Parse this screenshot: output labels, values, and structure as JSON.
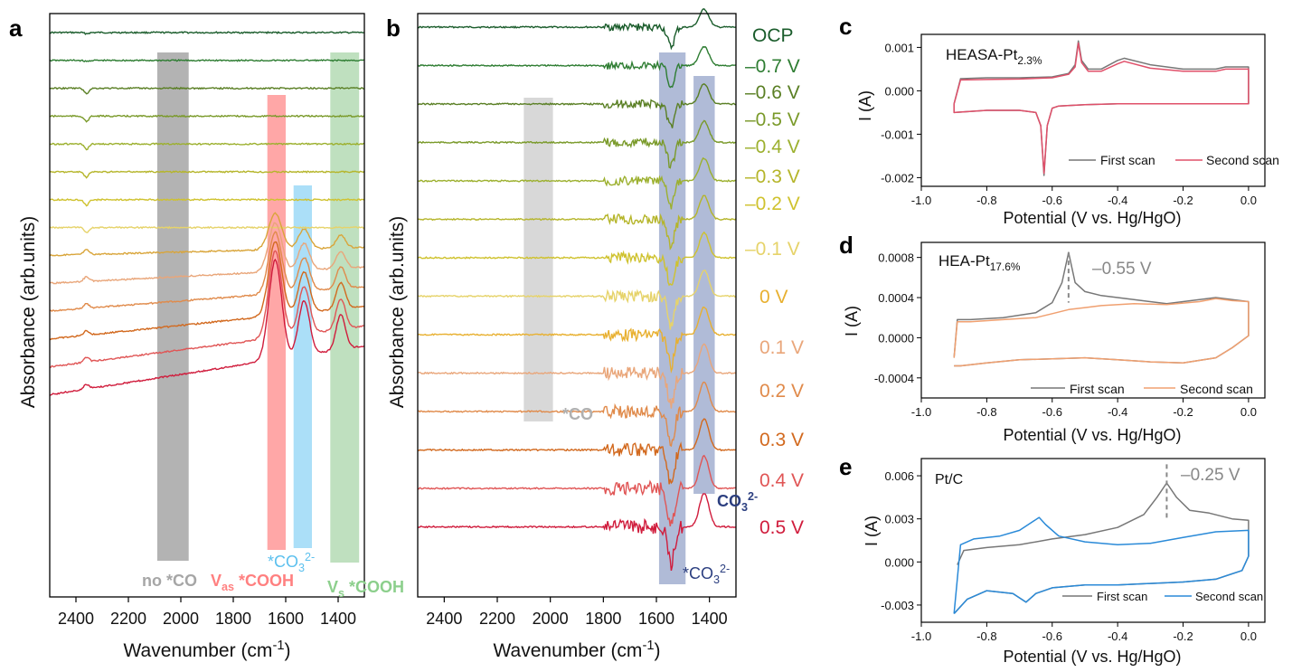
{
  "panels": {
    "a": {
      "letter": "a",
      "ylabel": "Absorbance (arb.units)",
      "xlabel_main": "Wavenumber (cm",
      "xlabel_sup": "-1",
      "xlabel_end": ")",
      "bands": [
        {
          "label": "no *CO",
          "color": "#9a9a9a",
          "label_color": "#a6a6a6"
        },
        {
          "label_main": "V",
          "label_sub": "as",
          "label_rest": " *COOH",
          "color": "#ff8a8a",
          "label_color": "#ff8080"
        },
        {
          "label_main": "*CO",
          "label_sub": "3",
          "label_sup": "2-",
          "color": "#8fd4f5",
          "label_color": "#6cc8f0"
        },
        {
          "label_main": "V",
          "label_sub": "s",
          "label_rest": " *COOH",
          "color": "#a9d6a9",
          "label_color": "#8ccf8c"
        }
      ]
    },
    "b": {
      "letter": "b",
      "ylabel": "Absorbance (arb.units)",
      "xlabel_main": "Wavenumber (cm",
      "xlabel_sup": "-1",
      "xlabel_end": ")",
      "bands": [
        {
          "label": "*CO",
          "color": "#c8c8c8",
          "label_color": "#b0b0b0"
        },
        {
          "label_main": "*CO",
          "label_sub": "3",
          "label_sup": "2-",
          "color": "#8f9ec6",
          "label_color": "#2c3f80"
        },
        {
          "label_main": "CO",
          "label_sub": "3",
          "label_sup": "2-",
          "color": "#8f9ec6",
          "label_color": "#2c3f80"
        }
      ],
      "potential_labels": [
        "OCP",
        "–0.7 V",
        "–0.6 V",
        "–0.5 V",
        "–0.4 V",
        "–0.3 V",
        "–0.2 V",
        "–0.1 V",
        "0 V",
        "0.1 V",
        "0.2 V",
        "0.3 V",
        "0.4 V",
        "0.5 V"
      ]
    },
    "c": {
      "letter": "c",
      "sample_main": "HEASA-Pt",
      "sample_sub": "2.3%",
      "ylabel": "I (A)",
      "xlabel": "Potential (V vs. Hg/HgO)",
      "legend": [
        "First scan",
        "Second scan"
      ]
    },
    "d": {
      "letter": "d",
      "sample_main": "HEA-Pt",
      "sample_sub": "17.6%",
      "annotation": "–0.55 V",
      "ylabel": "I (A)",
      "xlabel": "Potential (V vs. Hg/HgO)",
      "legend": [
        "First scan",
        "Second scan"
      ]
    },
    "e": {
      "letter": "e",
      "sample_main": "Pt/C",
      "annotation": "–0.25 V",
      "ylabel": "I (A)",
      "xlabel": "Potential (V vs. Hg/HgO)",
      "legend": [
        "First scan",
        "Second scan"
      ]
    }
  },
  "chart_data": [
    {
      "panel": "a",
      "type": "line",
      "title": "",
      "xlabel": "Wavenumber (cm-1)",
      "ylabel": "Absorbance (arb.units)",
      "xlim": [
        2500,
        1300
      ],
      "xticks": [
        2400,
        2200,
        2000,
        1800,
        1600,
        1400
      ],
      "xtick_labels": [
        "2400",
        "2200",
        "2000",
        "1800",
        "1600",
        "1400"
      ],
      "band_ranges": [
        [
          2090,
          1970
        ],
        [
          1670,
          1600
        ],
        [
          1570,
          1500
        ],
        [
          1430,
          1320
        ]
      ],
      "series": [
        {
          "name": "OCP",
          "color": "#1a5c2b",
          "offset": 0,
          "profile": "flat"
        },
        {
          "name": "-0.7 V",
          "color": "#2e7d32",
          "offset": 1,
          "profile": "flat"
        },
        {
          "name": "-0.6 V",
          "color": "#5a7f24",
          "offset": 2,
          "profile": "flat"
        },
        {
          "name": "-0.5 V",
          "color": "#7a9a2a",
          "offset": 3,
          "profile": "flat"
        },
        {
          "name": "-0.4 V",
          "color": "#9cb02e",
          "offset": 4,
          "profile": "flat"
        },
        {
          "name": "-0.3 V",
          "color": "#b5b52a",
          "offset": 5,
          "profile": "flat"
        },
        {
          "name": "-0.2 V",
          "color": "#cfc22e",
          "offset": 6,
          "profile": "flat"
        },
        {
          "name": "-0.1 V",
          "color": "#e6d36a",
          "offset": 7,
          "profile": "flat"
        },
        {
          "name": "0 V",
          "color": "#d9a53a",
          "offset": 8,
          "profile": "cooh"
        },
        {
          "name": "0.1 V",
          "color": "#e9a67a",
          "offset": 9,
          "profile": "cooh"
        },
        {
          "name": "0.2 V",
          "color": "#e08a4a",
          "offset": 10,
          "profile": "cooh"
        },
        {
          "name": "0.3 V",
          "color": "#d2691e",
          "offset": 11,
          "profile": "cooh"
        },
        {
          "name": "0.4 V",
          "color": "#e05555",
          "offset": 12,
          "profile": "cooh"
        },
        {
          "name": "0.5 V",
          "color": "#d01c3c",
          "offset": 13,
          "profile": "cooh"
        }
      ]
    },
    {
      "panel": "b",
      "type": "line",
      "title": "",
      "xlabel": "Wavenumber (cm-1)",
      "ylabel": "Absorbance (arb.units)",
      "xlim": [
        2500,
        1300
      ],
      "xticks": [
        2400,
        2200,
        2000,
        1800,
        1600,
        1400
      ],
      "xtick_labels": [
        "2400",
        "2200",
        "2000",
        "1800",
        "1600",
        "1400"
      ],
      "band_ranges": [
        [
          2100,
          1990
        ],
        [
          1590,
          1490
        ],
        [
          1460,
          1380
        ]
      ],
      "series": [
        {
          "name": "OCP",
          "color": "#1a5c2b",
          "offset": 0
        },
        {
          "name": "-0.7 V",
          "color": "#2e7d32",
          "offset": 1
        },
        {
          "name": "-0.6 V",
          "color": "#5a7f24",
          "offset": 2
        },
        {
          "name": "-0.5 V",
          "color": "#7a9a2a",
          "offset": 3
        },
        {
          "name": "-0.4 V",
          "color": "#9cb02e",
          "offset": 4
        },
        {
          "name": "-0.3 V",
          "color": "#b5b52a",
          "offset": 5
        },
        {
          "name": "-0.2 V",
          "color": "#cfc22e",
          "offset": 6
        },
        {
          "name": "-0.1 V",
          "color": "#e6d36a",
          "offset": 7
        },
        {
          "name": "0 V",
          "color": "#e8b030",
          "offset": 8
        },
        {
          "name": "0.1 V",
          "color": "#e9a67a",
          "offset": 9
        },
        {
          "name": "0.2 V",
          "color": "#e08a4a",
          "offset": 10
        },
        {
          "name": "0.3 V",
          "color": "#d2691e",
          "offset": 11
        },
        {
          "name": "0.4 V",
          "color": "#e05555",
          "offset": 12
        },
        {
          "name": "0.5 V",
          "color": "#d01c3c",
          "offset": 13
        }
      ]
    },
    {
      "panel": "c",
      "type": "line",
      "xlabel": "Potential (V vs. Hg/HgO)",
      "ylabel": "I (A)",
      "xlim": [
        -1.0,
        0.05
      ],
      "ylim": [
        -0.0022,
        0.0013
      ],
      "xticks": [
        -1.0,
        -0.8,
        -0.6,
        -0.4,
        -0.2,
        0.0
      ],
      "xtick_labels": [
        "-1.0",
        "-0.8",
        "-0.6",
        "-0.4",
        "-0.2",
        "0.0"
      ],
      "yticks": [
        0.001,
        0.0,
        -0.001,
        -0.002
      ],
      "ytick_labels": [
        "0.001",
        "0.000",
        "-0.001",
        "-0.002"
      ],
      "series": [
        {
          "name": "First scan",
          "color": "#777777",
          "x": [
            -0.9,
            -0.88,
            -0.8,
            -0.7,
            -0.6,
            -0.55,
            -0.53,
            -0.52,
            -0.51,
            -0.49,
            -0.45,
            -0.4,
            -0.38,
            -0.3,
            -0.2,
            -0.1,
            -0.07,
            0.0,
            0.0,
            -0.1,
            -0.2,
            -0.4,
            -0.5,
            -0.58,
            -0.6,
            -0.615,
            -0.625,
            -0.635,
            -0.65,
            -0.7,
            -0.8,
            -0.9,
            -0.9
          ],
          "y": [
            -0.0003,
            0.00028,
            0.0003,
            0.0003,
            0.00032,
            0.0004,
            0.0006,
            0.00115,
            0.0007,
            0.0005,
            0.0005,
            0.0007,
            0.00075,
            0.0006,
            0.0005,
            0.0005,
            0.00055,
            0.00055,
            -0.0003,
            -0.0003,
            -0.0003,
            -0.0003,
            -0.00032,
            -0.00035,
            -0.0004,
            -0.0008,
            -0.00195,
            -0.0008,
            -0.0005,
            -0.00045,
            -0.00045,
            -0.0005,
            -0.0003
          ]
        },
        {
          "name": "Second scan",
          "color": "#e0506a",
          "x": [
            -0.9,
            -0.88,
            -0.8,
            -0.7,
            -0.6,
            -0.55,
            -0.53,
            -0.52,
            -0.51,
            -0.49,
            -0.45,
            -0.4,
            -0.38,
            -0.3,
            -0.2,
            -0.1,
            -0.07,
            0.0,
            0.0,
            -0.1,
            -0.2,
            -0.4,
            -0.5,
            -0.58,
            -0.6,
            -0.615,
            -0.625,
            -0.635,
            -0.65,
            -0.7,
            -0.8,
            -0.9,
            -0.9
          ],
          "y": [
            -0.0003,
            0.00025,
            0.00026,
            0.00027,
            0.0003,
            0.00038,
            0.00055,
            0.0011,
            0.00065,
            0.00045,
            0.00045,
            0.00062,
            0.00068,
            0.00052,
            0.00045,
            0.00045,
            0.0005,
            0.0005,
            -0.0003,
            -0.0003,
            -0.0003,
            -0.0003,
            -0.00032,
            -0.00035,
            -0.0004,
            -0.0008,
            -0.0019,
            -0.0008,
            -0.0005,
            -0.00045,
            -0.00045,
            -0.0005,
            -0.0003
          ]
        }
      ]
    },
    {
      "panel": "d",
      "type": "line",
      "xlabel": "Potential (V vs. Hg/HgO)",
      "ylabel": "I (A)",
      "xlim": [
        -1.0,
        0.05
      ],
      "ylim": [
        -0.0006,
        0.00095
      ],
      "xticks": [
        -1.0,
        -0.8,
        -0.6,
        -0.4,
        -0.2,
        0.0
      ],
      "xtick_labels": [
        "-1.0",
        "-0.8",
        "-0.6",
        "-0.4",
        "-0.2",
        "0.0"
      ],
      "yticks": [
        0.0008,
        0.0004,
        0.0,
        -0.0004
      ],
      "ytick_labels": [
        "0.0008",
        "0.0004",
        "0.0000",
        "-0.0004"
      ],
      "series": [
        {
          "name": "First scan",
          "color": "#777777",
          "x": [
            -0.9,
            -0.89,
            -0.85,
            -0.75,
            -0.65,
            -0.6,
            -0.57,
            -0.55,
            -0.53,
            -0.5,
            -0.45,
            -0.35,
            -0.25,
            -0.15,
            -0.1,
            -0.05,
            0.0,
            0.0,
            -0.05,
            -0.1,
            -0.2,
            -0.3,
            -0.4,
            -0.5,
            -0.6,
            -0.7,
            -0.8,
            -0.88,
            -0.9
          ],
          "y": [
            -0.0002,
            0.00018,
            0.00018,
            0.0002,
            0.00025,
            0.00035,
            0.00055,
            0.00085,
            0.00055,
            0.00046,
            0.00042,
            0.00038,
            0.00034,
            0.00038,
            0.0004,
            0.00038,
            0.00036,
            2e-05,
            -0.0001,
            -0.0002,
            -0.00025,
            -0.00024,
            -0.00022,
            -0.0002,
            -0.00021,
            -0.00022,
            -0.00025,
            -0.00028,
            -0.00028
          ]
        },
        {
          "name": "Second scan",
          "color": "#f0a070",
          "x": [
            -0.9,
            -0.89,
            -0.85,
            -0.75,
            -0.65,
            -0.6,
            -0.55,
            -0.5,
            -0.45,
            -0.35,
            -0.25,
            -0.15,
            -0.1,
            -0.05,
            0.0,
            0.0,
            -0.05,
            -0.1,
            -0.2,
            -0.3,
            -0.4,
            -0.5,
            -0.6,
            -0.7,
            -0.8,
            -0.88,
            -0.9
          ],
          "y": [
            -0.0002,
            0.00016,
            0.00016,
            0.00018,
            0.0002,
            0.00024,
            0.00028,
            0.0003,
            0.00032,
            0.00034,
            0.00033,
            0.00036,
            0.00039,
            0.00037,
            0.00036,
            2e-05,
            -0.0001,
            -0.0002,
            -0.00025,
            -0.00024,
            -0.00022,
            -0.0002,
            -0.00021,
            -0.00022,
            -0.00025,
            -0.00028,
            -0.00028
          ]
        }
      ]
    },
    {
      "panel": "e",
      "type": "line",
      "xlabel": "Potential (V vs. Hg/HgO)",
      "ylabel": "I (A)",
      "xlim": [
        -1.0,
        0.05
      ],
      "ylim": [
        -0.0042,
        0.0072
      ],
      "xticks": [
        -1.0,
        -0.8,
        -0.6,
        -0.4,
        -0.2,
        0.0
      ],
      "xtick_labels": [
        "-1.0",
        "-0.8",
        "-0.6",
        "-0.4",
        "-0.2",
        "0.0"
      ],
      "yticks": [
        0.006,
        0.003,
        0.0,
        -0.003
      ],
      "ytick_labels": [
        "0.006",
        "0.003",
        "0.000",
        "-0.003"
      ],
      "series": [
        {
          "name": "First scan",
          "color": "#777777",
          "x": [
            -0.89,
            -0.87,
            -0.8,
            -0.7,
            -0.6,
            -0.5,
            -0.4,
            -0.32,
            -0.28,
            -0.25,
            -0.22,
            -0.18,
            -0.12,
            -0.05,
            0.0,
            0.0,
            -0.02,
            -0.1,
            -0.2,
            -0.3,
            -0.4,
            -0.5,
            -0.6,
            -0.65,
            -0.68,
            -0.72,
            -0.8,
            -0.86,
            -0.9
          ],
          "y": [
            -0.0002,
            0.0008,
            0.001,
            0.0012,
            0.0016,
            0.0019,
            0.0024,
            0.0033,
            0.0045,
            0.0055,
            0.0045,
            0.0036,
            0.0034,
            0.003,
            0.0029,
            0.0004,
            -0.0006,
            -0.0012,
            -0.0014,
            -0.0015,
            -0.0016,
            -0.0016,
            -0.0018,
            -0.0022,
            -0.0028,
            -0.0022,
            -0.002,
            -0.0026,
            -0.0036
          ]
        },
        {
          "name": "Second scan",
          "color": "#2a8ad8",
          "x": [
            -0.9,
            -0.88,
            -0.84,
            -0.76,
            -0.7,
            -0.66,
            -0.64,
            -0.62,
            -0.58,
            -0.5,
            -0.4,
            -0.3,
            -0.2,
            -0.1,
            0.0,
            0.0,
            -0.02,
            -0.1,
            -0.2,
            -0.3,
            -0.4,
            -0.5,
            -0.6,
            -0.65,
            -0.68,
            -0.72,
            -0.8,
            -0.86,
            -0.9
          ],
          "y": [
            -0.0036,
            0.0012,
            0.0016,
            0.0018,
            0.0022,
            0.0028,
            0.0031,
            0.0026,
            0.0018,
            0.0014,
            0.0012,
            0.0013,
            0.0017,
            0.0021,
            0.0022,
            0.0004,
            -0.0006,
            -0.0012,
            -0.0014,
            -0.0015,
            -0.0016,
            -0.0016,
            -0.0018,
            -0.0022,
            -0.0028,
            -0.0022,
            -0.002,
            -0.0026,
            -0.0036
          ]
        }
      ]
    }
  ]
}
